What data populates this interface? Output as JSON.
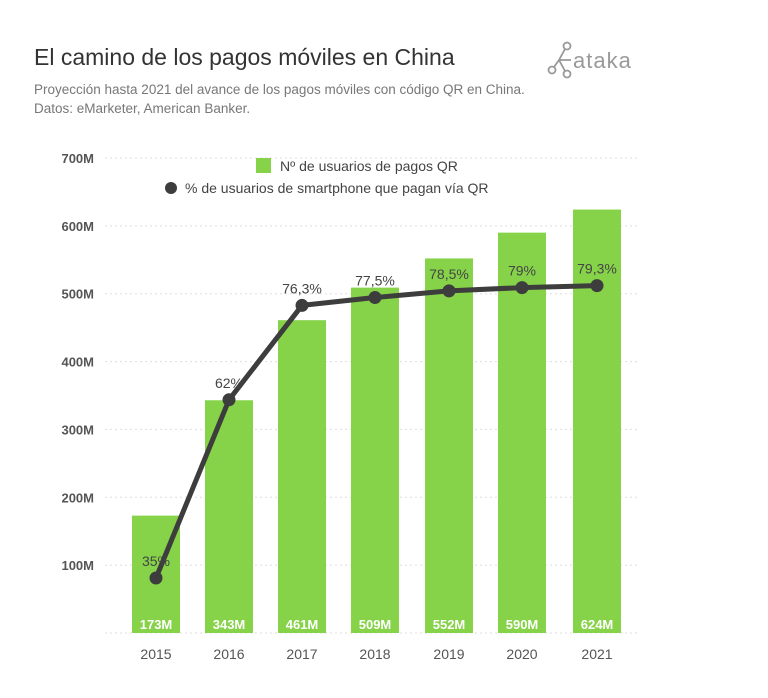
{
  "header": {
    "title": "El camino de los pagos móviles en China",
    "subtitle": "Proyección hasta 2021 del avance de los pagos móviles con código QR en China. Datos: eMarketer, American Banker.",
    "logo": "xataka"
  },
  "colors": {
    "bar": "#86d34a",
    "line": "#3d3d3d",
    "grid": "#dddddd"
  },
  "chart_data": {
    "type": "bar",
    "title": "El camino de los pagos móviles en China",
    "categories": [
      "2015",
      "2016",
      "2017",
      "2018",
      "2019",
      "2020",
      "2021"
    ],
    "ylim": [
      0,
      700
    ],
    "yticks": [
      100,
      200,
      300,
      400,
      500,
      600,
      700
    ],
    "ytick_labels": [
      "100M",
      "200M",
      "300M",
      "400M",
      "500M",
      "600M",
      "700M"
    ],
    "grid": true,
    "legend_placement": "top-center",
    "series": [
      {
        "name": "Nº de usuarios de pagos QR",
        "type": "bar",
        "unit": "M",
        "values": [
          173,
          343,
          461,
          509,
          552,
          590,
          624
        ],
        "labels": [
          "173M",
          "343M",
          "461M",
          "509M",
          "552M",
          "590M",
          "624M"
        ]
      },
      {
        "name": "% de usuarios de smartphone que pagan vía QR",
        "type": "line",
        "unit": "%",
        "values": [
          35,
          62,
          76.3,
          77.5,
          78.5,
          79,
          79.3
        ],
        "labels": [
          "35%",
          "62%",
          "76,3%",
          "77,5%",
          "78,5%",
          "79%",
          "79,3%"
        ]
      }
    ]
  }
}
